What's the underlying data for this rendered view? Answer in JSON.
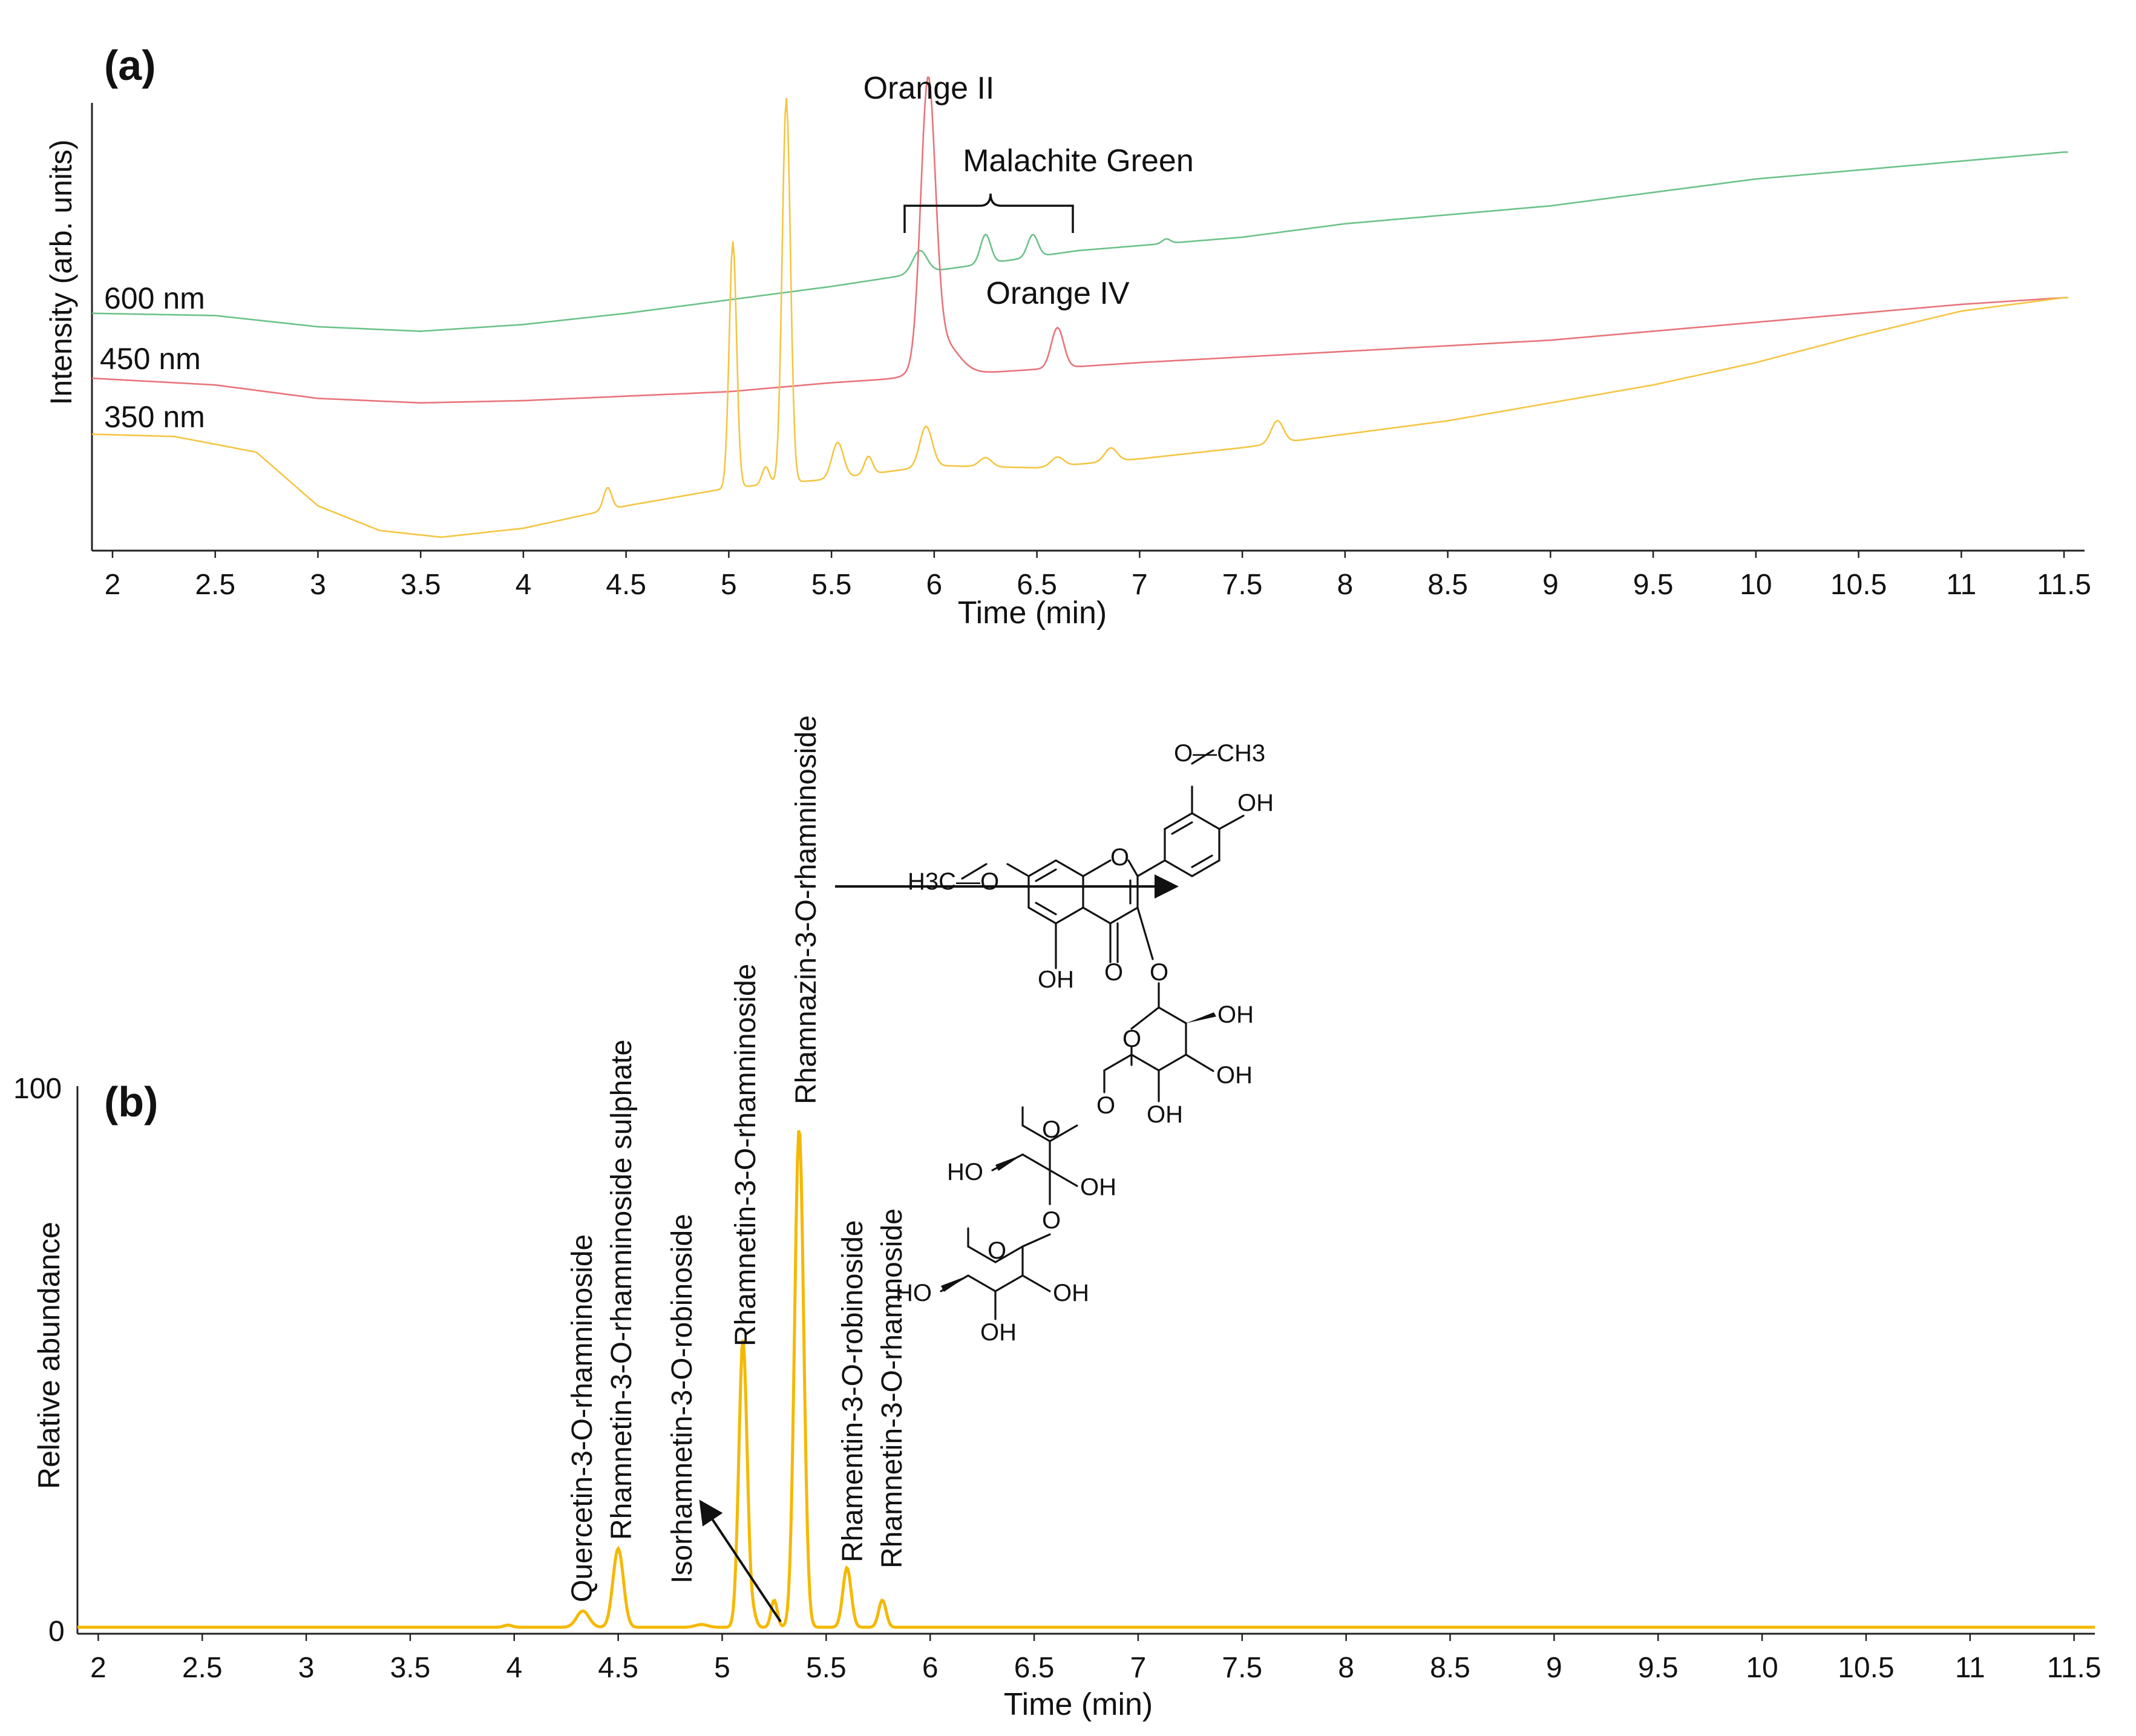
{
  "chart_data": [
    {
      "type": "line",
      "panel_label": "(a)",
      "ylabel": "Intensity (arb. units)",
      "xlabel": "Time (min)",
      "xlim": [
        1.9,
        11.6
      ],
      "xticks": [
        "2",
        "2.5",
        "3",
        "3.5",
        "4",
        "4.5",
        "5",
        "5.5",
        "6",
        "6.5",
        "7",
        "7.5",
        "8",
        "8.5",
        "9",
        "9.5",
        "10",
        "10.5",
        "11",
        "11.5"
      ],
      "series": [
        {
          "name": "600 nm",
          "color": "#6cc289",
          "baseline": [
            [
              1.9,
              0.53
            ],
            [
              2.5,
              0.525
            ],
            [
              3.0,
              0.5
            ],
            [
              3.5,
              0.49
            ],
            [
              4.0,
              0.505
            ],
            [
              4.5,
              0.53
            ],
            [
              5.0,
              0.56
            ],
            [
              5.5,
              0.59
            ],
            [
              6.0,
              0.625
            ],
            [
              6.7,
              0.67
            ],
            [
              7.5,
              0.7
            ],
            [
              8.0,
              0.73
            ],
            [
              9.0,
              0.77
            ],
            [
              10.0,
              0.83
            ],
            [
              11.0,
              0.87
            ],
            [
              11.5,
              0.89
            ]
          ],
          "peaks": [
            [
              5.93,
              0.05,
              0.035
            ],
            [
              6.25,
              0.065,
              0.025
            ],
            [
              6.48,
              0.05,
              0.025
            ],
            [
              7.13,
              0.01,
              0.02
            ]
          ]
        },
        {
          "name": "450 nm",
          "color": "#e8737a",
          "baseline": [
            [
              1.9,
              0.385
            ],
            [
              2.5,
              0.37
            ],
            [
              3.0,
              0.34
            ],
            [
              3.5,
              0.33
            ],
            [
              4.0,
              0.335
            ],
            [
              4.5,
              0.345
            ],
            [
              5.0,
              0.355
            ],
            [
              5.5,
              0.375
            ],
            [
              6.0,
              0.39
            ],
            [
              7.0,
              0.42
            ],
            [
              8.0,
              0.445
            ],
            [
              9.0,
              0.47
            ],
            [
              10.0,
              0.51
            ],
            [
              11.0,
              0.55
            ],
            [
              11.5,
              0.565
            ]
          ],
          "peaks": [
            [
              5.97,
              0.61,
              0.035
            ],
            [
              6.03,
              0.08,
              0.08
            ],
            [
              6.6,
              0.09,
              0.03
            ]
          ]
        },
        {
          "name": "350 nm",
          "color": "#f5c542",
          "baseline": [
            [
              1.9,
              0.26
            ],
            [
              2.3,
              0.255
            ],
            [
              2.7,
              0.22
            ],
            [
              3.0,
              0.1
            ],
            [
              3.3,
              0.045
            ],
            [
              3.6,
              0.03
            ],
            [
              4.0,
              0.05
            ],
            [
              4.5,
              0.1
            ],
            [
              5.0,
              0.14
            ],
            [
              5.5,
              0.16
            ],
            [
              6.0,
              0.19
            ],
            [
              6.5,
              0.185
            ],
            [
              7.0,
              0.205
            ],
            [
              7.5,
              0.23
            ],
            [
              8.0,
              0.26
            ],
            [
              8.5,
              0.29
            ],
            [
              9.0,
              0.33
            ],
            [
              9.5,
              0.37
            ],
            [
              10.0,
              0.42
            ],
            [
              10.5,
              0.48
            ],
            [
              11.0,
              0.535
            ],
            [
              11.5,
              0.565
            ]
          ],
          "peaks": [
            [
              4.41,
              0.05,
              0.02
            ],
            [
              5.02,
              0.55,
              0.018
            ],
            [
              5.18,
              0.04,
              0.018
            ],
            [
              5.28,
              0.86,
              0.02
            ],
            [
              5.53,
              0.08,
              0.028
            ],
            [
              5.68,
              0.04,
              0.02
            ],
            [
              5.96,
              0.09,
              0.03
            ],
            [
              6.25,
              0.02,
              0.03
            ],
            [
              6.6,
              0.02,
              0.03
            ],
            [
              6.86,
              0.03,
              0.03
            ],
            [
              7.67,
              0.05,
              0.03
            ]
          ]
        }
      ],
      "annotations": [
        {
          "text": "Orange II",
          "x": 5.96
        },
        {
          "text": "Malachite Green",
          "x": 6.7
        },
        {
          "text": "Orange IV",
          "x": 6.6
        }
      ]
    },
    {
      "type": "line",
      "panel_label": "(b)",
      "ylabel": "Relative abundance",
      "xlabel": "Time (min)",
      "xlim": [
        1.9,
        11.6
      ],
      "ylim": [
        0,
        100
      ],
      "yticks": [
        "0",
        "100"
      ],
      "xticks": [
        "2",
        "2.5",
        "3",
        "3.5",
        "4",
        "4.5",
        "5",
        "5.5",
        "6",
        "6.5",
        "7",
        "7.5",
        "8",
        "8.5",
        "9",
        "9.5",
        "10",
        "10.5",
        "11",
        "11.5"
      ],
      "series": [
        {
          "color": "#f5b800",
          "baseline": [
            [
              1.9,
              0.3
            ],
            [
              11.6,
              0.3
            ]
          ],
          "peaks": [
            [
              3.97,
              0.4,
              0.02
            ],
            [
              4.33,
              3.0,
              0.03
            ],
            [
              4.5,
              14.5,
              0.025
            ],
            [
              4.9,
              0.5,
              0.03
            ],
            [
              5.1,
              53,
              0.02
            ],
            [
              5.15,
              2,
              0.015
            ],
            [
              5.25,
              5,
              0.015
            ],
            [
              5.37,
              92,
              0.022
            ],
            [
              5.6,
              11,
              0.02
            ],
            [
              5.77,
              5,
              0.018
            ]
          ]
        }
      ],
      "peak_labels": [
        {
          "text": "Quercetin-3-O-rhamninoside",
          "x": 4.33
        },
        {
          "text": "Rhamnetin-3-O-rhamninoside sulphate",
          "x": 4.5
        },
        {
          "text": "Isorhamnetin-3-O-robinoside",
          "x": 4.8
        },
        {
          "text": "Rhamnetin-3-O-rhamninoside",
          "x": 5.1
        },
        {
          "text": "Rhamnazin-3-O-rhamninoside",
          "x": 5.37
        },
        {
          "text": "Rhamentin-3-O-robinoside",
          "x": 5.6
        },
        {
          "text": "Rhamnetin-3-O-rhamnoside",
          "x": 5.77
        }
      ]
    }
  ],
  "structure_labels": {
    "ch3_top": "O—CH3",
    "oh_b_ring": "OH",
    "ring_o": "O",
    "h3c_o": "H3C—O",
    "oh_5": "OH",
    "keto_o": "O",
    "glyc_o": "O",
    "sugar_ring_o": "O",
    "oh_2": "OH",
    "oh_3": "OH",
    "oh_4": "OH",
    "link_o": "O",
    "rha1_ring_o": "O",
    "rha1_oh_l": "HO",
    "rha1_oh_r": "OH",
    "rha_link_o": "O",
    "rha2_ring_o": "O",
    "rha2_oh_l": "HO",
    "rha2_oh_r": "OH",
    "rha2_oh_b": "OH"
  }
}
